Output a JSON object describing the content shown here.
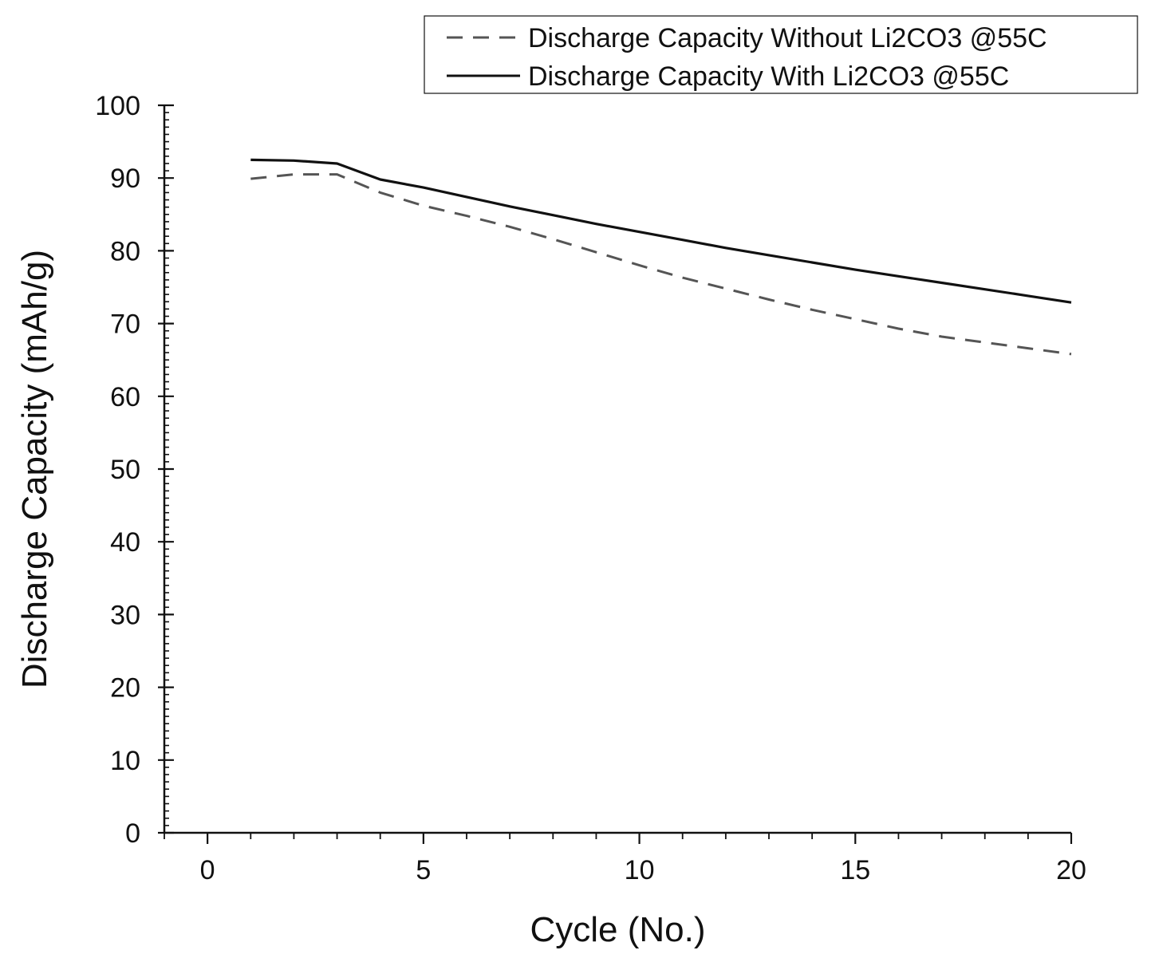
{
  "chart_data": {
    "type": "line",
    "title": "",
    "xlabel": "Cycle (No.)",
    "ylabel": "Discharge Capacity (mAh/g)",
    "xlim": [
      -1,
      20
    ],
    "ylim": [
      0,
      100
    ],
    "x_ticks": [
      0,
      5,
      10,
      15,
      20
    ],
    "y_ticks": [
      0,
      10,
      20,
      30,
      40,
      50,
      60,
      70,
      80,
      90,
      100
    ],
    "x_tick_labels": [
      "0",
      "5",
      "10",
      "15",
      "20"
    ],
    "y_tick_labels": [
      "0",
      "10",
      "20",
      "30",
      "40",
      "50",
      "60",
      "70",
      "80",
      "90",
      "100"
    ],
    "grid": false,
    "legend_position": "top-right",
    "x": [
      1,
      2,
      3,
      4,
      5,
      6,
      7,
      8,
      9,
      10,
      11,
      12,
      13,
      14,
      15,
      16,
      17,
      18,
      19,
      20
    ],
    "series": [
      {
        "name": "Discharge Capacity Without Li2CO3 @55C",
        "style": "dashed",
        "color": "#555555",
        "values": [
          89.9,
          90.5,
          90.5,
          88.0,
          86.2,
          84.8,
          83.3,
          81.6,
          79.8,
          78.0,
          76.3,
          74.8,
          73.3,
          71.9,
          70.6,
          69.3,
          68.2,
          67.4,
          66.6,
          65.8
        ]
      },
      {
        "name": "Discharge Capacity With Li2CO3 @55C",
        "style": "solid",
        "color": "#111111",
        "values": [
          92.5,
          92.4,
          92.0,
          89.8,
          88.7,
          87.4,
          86.1,
          84.9,
          83.7,
          82.6,
          81.5,
          80.4,
          79.4,
          78.4,
          77.4,
          76.5,
          75.6,
          74.7,
          73.8,
          72.9
        ]
      }
    ]
  }
}
